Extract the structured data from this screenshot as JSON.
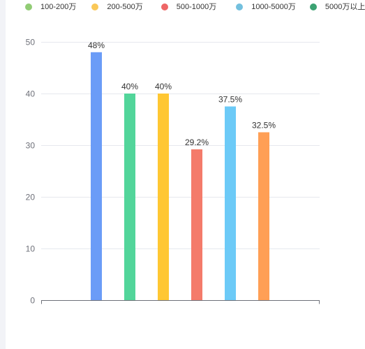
{
  "colors": {
    "grid": "#e6e8ee",
    "axis": "#6e7079",
    "tick_label": "#6e7079",
    "data_label": "#333333"
  },
  "legend": {
    "items": [
      {
        "label": "100-200万",
        "color": "#91cc75"
      },
      {
        "label": "200-500万",
        "color": "#fac858"
      },
      {
        "label": "500-1000万",
        "color": "#ee6666"
      },
      {
        "label": "1000-5000万",
        "color": "#73c0de"
      },
      {
        "label": "5000万以上",
        "color": "#3ba272"
      }
    ]
  },
  "chart_data": {
    "type": "bar",
    "title": "",
    "xlabel": "",
    "ylabel": "",
    "ylim": [
      0,
      50
    ],
    "yticks": [
      0,
      10,
      20,
      30,
      40,
      50
    ],
    "grid": true,
    "legend_position": "top",
    "values": [
      48,
      40,
      40,
      29.2,
      37.5,
      32.5
    ],
    "value_labels": [
      "48%",
      "40%",
      "40%",
      "29.2%",
      "37.5%",
      "32.5%"
    ],
    "bar_colors": [
      "#6b9cf7",
      "#52d59a",
      "#ffc733",
      "#f47b6a",
      "#6ccaf7",
      "#ff9f55"
    ]
  }
}
